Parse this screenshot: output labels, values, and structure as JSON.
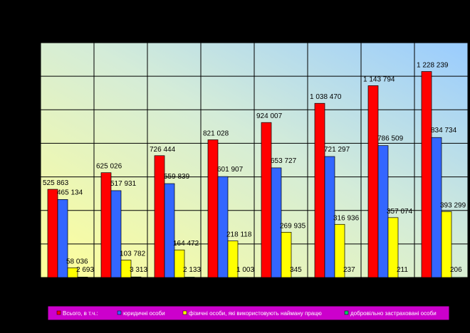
{
  "chart_data": {
    "type": "bar",
    "title": "",
    "xlabel": "",
    "ylabel": "",
    "categories": [
      "",
      "",
      "",
      "",
      "",
      "",
      "",
      ""
    ],
    "ylim": [
      0,
      1400000
    ],
    "grid": true,
    "legend_position": "bottom",
    "series": [
      {
        "name": "Всього, в т.ч.:",
        "color": "#ff0000",
        "values": [
          525863,
          625026,
          726444,
          821028,
          924007,
          1038470,
          1143794,
          1228239
        ],
        "labels": [
          "525 863",
          "625 026",
          "726 444",
          "821 028",
          "924 007",
          "1 038 470",
          "1 143 794",
          "1 228 239"
        ]
      },
      {
        "name": "юридичні особи",
        "color": "#3366ff",
        "values": [
          465134,
          517931,
          559839,
          601907,
          653727,
          721297,
          786509,
          834734
        ],
        "labels": [
          "465 134",
          "517 931",
          "559 839",
          "601 907",
          "653 727",
          "721 297",
          "786 509",
          "834 734"
        ]
      },
      {
        "name": "фізичні особи, які використовують найману працю",
        "color": "#ffff00",
        "values": [
          58036,
          103782,
          164472,
          218118,
          269935,
          316936,
          357074,
          393299
        ],
        "labels": [
          "58 036",
          "103 782",
          "164 472",
          "218 118",
          "269 935",
          "316 936",
          "357 074",
          "393 299"
        ]
      },
      {
        "name": "добровільно застраховані особи",
        "color": "#00cc66",
        "values": [
          2693,
          3313,
          2133,
          1003,
          345,
          237,
          211,
          206
        ],
        "labels": [
          "2 693",
          "3 313",
          "2 133",
          "1 003",
          "345",
          "237",
          "211",
          "206"
        ]
      }
    ]
  },
  "legend": {
    "background": "#cc00cc",
    "items": [
      {
        "label": "Всього, в т.ч.:",
        "color": "#ff0000"
      },
      {
        "label": "юридичні особи",
        "color": "#3366ff"
      },
      {
        "label": "фізичні особи, які використовують найману працю",
        "color": "#ffff00"
      },
      {
        "label": "добровільно застраховані особи",
        "color": "#00cc66"
      }
    ]
  }
}
